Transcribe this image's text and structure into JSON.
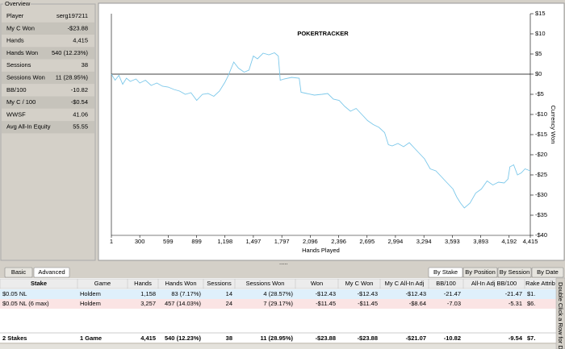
{
  "overview": {
    "title": "Overview",
    "rows": [
      [
        "Player",
        "serg197211"
      ],
      [
        "My C Won",
        "-$23.88"
      ],
      [
        "Hands",
        "4,415"
      ],
      [
        "Hands Won",
        "540 (12.23%)"
      ],
      [
        "Sessions",
        "38"
      ],
      [
        "Sessions Won",
        "11 (28.95%)"
      ],
      [
        "BB/100",
        "-10.82"
      ],
      [
        "My C / 100",
        "-$0.54"
      ],
      [
        "WWSF",
        "41.06"
      ],
      [
        "Avg All-In Equity",
        "55.55"
      ]
    ]
  },
  "chart_data": {
    "type": "line",
    "watermark": "POKERTRACKER",
    "x_label": "Hands Played",
    "y_label": "Currency Won",
    "color": "#7cc8ea",
    "x": [
      1,
      40,
      80,
      120,
      160,
      200,
      260,
      300,
      360,
      420,
      480,
      540,
      600,
      660,
      720,
      780,
      840,
      900,
      960,
      1020,
      1080,
      1140,
      1198,
      1230,
      1290,
      1340,
      1400,
      1450,
      1497,
      1540,
      1600,
      1660,
      1720,
      1760,
      1780,
      1820,
      1900,
      1980,
      2000,
      2060,
      2140,
      2220,
      2280,
      2340,
      2400,
      2460,
      2520,
      2580,
      2640,
      2700,
      2760,
      2820,
      2880,
      2920,
      2960,
      3020,
      3080,
      3140,
      3200,
      3260,
      3300,
      3360,
      3420,
      3480,
      3540,
      3600,
      3640,
      3680,
      3720,
      3780,
      3840,
      3900,
      3960,
      4020,
      4080,
      4140,
      4180,
      4200,
      4240,
      4280,
      4320,
      4360,
      4415
    ],
    "values": [
      0,
      -1.5,
      -0.3,
      -2.5,
      -1,
      -1.8,
      -1.2,
      -2.2,
      -1.5,
      -2.8,
      -2.2,
      -3,
      -3.2,
      -3.8,
      -4.2,
      -5,
      -4.6,
      -6.5,
      -5,
      -4.8,
      -5.5,
      -4.2,
      -2,
      -0.5,
      3,
      1.5,
      0.5,
      1,
      4.5,
      3.8,
      5.2,
      4.8,
      5.3,
      4.5,
      -1.5,
      -1.2,
      -0.8,
      -1,
      -4.5,
      -4.8,
      -5.2,
      -5,
      -4.8,
      -6.2,
      -6.5,
      -8,
      -9.2,
      -8.5,
      -10,
      -11.5,
      -12.5,
      -13.2,
      -14.5,
      -17.5,
      -17.8,
      -17.2,
      -18,
      -17,
      -18.5,
      -20,
      -21,
      -23.5,
      -24,
      -25.5,
      -27,
      -28.5,
      -30.5,
      -32,
      -33.2,
      -32,
      -29.5,
      -28.5,
      -26.5,
      -27.5,
      -26.8,
      -27,
      -26,
      -23,
      -22.5,
      -25,
      -24.5,
      -23.5,
      -24
    ],
    "xlim": [
      1,
      4415
    ],
    "ylim": [
      -40,
      15
    ],
    "xticks": [
      1,
      300,
      599,
      899,
      {
        "value": 1198,
        "label": "1,198"
      },
      {
        "value": 1497,
        "label": "1,497"
      },
      {
        "value": 1797,
        "label": "1,797"
      },
      {
        "value": 2096,
        "label": "2,096"
      },
      {
        "value": 2396,
        "label": "2,396"
      },
      {
        "value": 2695,
        "label": "2,695"
      },
      {
        "value": 2994,
        "label": "2,994"
      },
      {
        "value": 3294,
        "label": "3,294"
      },
      {
        "value": 3593,
        "label": "3,593"
      },
      {
        "value": 3893,
        "label": "3,893"
      },
      {
        "value": 4192,
        "label": "4,192"
      },
      {
        "value": 4415,
        "label": "4,415"
      }
    ],
    "yticks": [
      {
        "value": 15,
        "label": "$15"
      },
      {
        "value": 10,
        "label": "$10"
      },
      {
        "value": 5,
        "label": "$5"
      },
      {
        "value": 0,
        "label": "$0"
      },
      {
        "value": -5,
        "label": "-$5"
      },
      {
        "value": -10,
        "label": "-$10"
      },
      {
        "value": -15,
        "label": "-$15"
      },
      {
        "value": -20,
        "label": "-$20"
      },
      {
        "value": -25,
        "label": "-$25"
      },
      {
        "value": -30,
        "label": "-$30"
      },
      {
        "value": -35,
        "label": "-$35"
      },
      {
        "value": -40,
        "label": "-$40"
      }
    ]
  },
  "buttons": {
    "left": [
      "Basic",
      "Advanced"
    ],
    "right": [
      "By Stake",
      "By Position",
      "By Session",
      "By Date"
    ]
  },
  "table": {
    "columns": [
      "Stake",
      "Game",
      "Hands",
      "Hands Won",
      "Sessions",
      "Sessions Won",
      "Won",
      "My C Won",
      "My C All-In Adj",
      "BB/100",
      "All-In Adj BB/100",
      "Rake Attrib"
    ],
    "rows": [
      [
        "$0.05 NL",
        "Holdem",
        "1,158",
        "83 (7.17%)",
        "14",
        "4 (28.57%)",
        "-$12.43",
        "-$12.43",
        "-$12.43",
        "-21.47",
        "-21.47",
        "$1."
      ],
      [
        "$0.05 NL (6 max)",
        "Holdem",
        "3,257",
        "457 (14.03%)",
        "24",
        "7 (29.17%)",
        "-$11.45",
        "-$11.45",
        "-$8.64",
        "-7.03",
        "-5.31",
        "$6."
      ]
    ],
    "totals": [
      "2 Stakes",
      "1 Game",
      "4,415",
      "540 (12.23%)",
      "38",
      "11 (28.95%)",
      "-$23.88",
      "-$23.88",
      "-$21.07",
      "-10.82",
      "-9.54",
      "$7."
    ]
  },
  "side_note": "Double Click a Row for Details"
}
